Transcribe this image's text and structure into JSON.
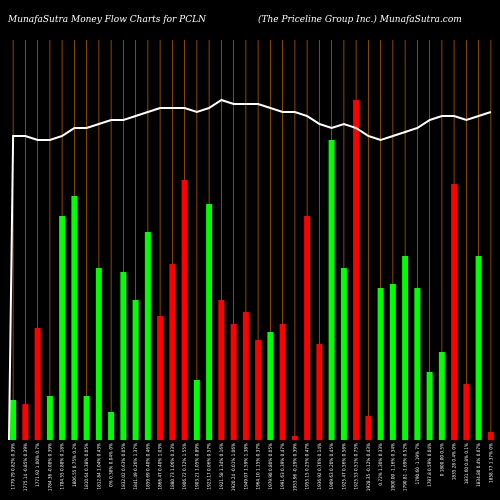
{
  "chart_data": {
    "type": "bar",
    "title": "MunafaSutra  Money Flow  Charts for PCLN",
    "subtitle": "(The    Priceline    Group Inc.) MunafaSutra.com",
    "xlabel": "",
    "ylabel": "",
    "ylim": [
      0,
      100
    ],
    "grid": true,
    "colors": {
      "up": "#00ff00",
      "down": "#ff0000",
      "line": "#ffffff",
      "grid": "#b05a00",
      "background": "#000000"
    },
    "categories": [
      "1779.79 0.82% 0.39%",
      "1775.14 -0.85% 0.39%",
      "1771.92 1.00% 0.7%",
      "1784.36 -0.08% 0.39%",
      "1784.55 0.88% 0.18%",
      "1806.55 0.75% 0.2%",
      "1810.64 0.38% 0.05%",
      "1812.84 1.04% 0.43%",
      "0% 0.38% 0.04% 0%",
      "1832.02 0.63% 0.05%",
      "1841.49 0.26% 1.37%",
      "1859.69 0.40% 0.46%",
      "1866.47 0.40% 1.03%",
      "1880.73 1.06% 0.33%",
      "1906.72 0.72% 1.55%",
      "1903.21 1.05% 0.89%",
      "1923.17 0.06% 0.57%",
      "1921.58 1.34% 0.16%",
      "1920.24 -0.01% 1.06%",
      "1949.07 1.59% 1.38%",
      "1964.10 1.15% 0.37%",
      "1979.98 0.80% 0.05%",
      "1991.63 0.39% 0.47%",
      "1953.96 -0.29% 0.39%",
      "1955.15 0.25% 0.47%",
      "1936.92 0.76% 0.14%",
      "1909.63 0.20% 0.45%",
      "1925.47 0.56% 0.58%",
      "1925.53 0.51% 0.75%",
      "1928.35 -0.12% 0.43%",
      "0.72% 1.30% 0.33%",
      "1900.00 -1.16% 0.34%",
      "1790.81 -1.69% 0.52%",
      "1790.60 -1.19% 7%",
      "1787.8 0.59% 0.04%",
      "0 1800.00 0.5%",
      "1835.28 0.4% 0%",
      "1831.60 0.8% 0.1%",
      "1834.80 0.4% 0.07%",
      "1858.77 1.37% 0%"
    ],
    "values": [
      10,
      9,
      28,
      11,
      56,
      61,
      11,
      43,
      7,
      42,
      35,
      52,
      31,
      44,
      65,
      15,
      59,
      35,
      29,
      32,
      25,
      27,
      29,
      1,
      56,
      24,
      75,
      43,
      85,
      6,
      38,
      39,
      46,
      38,
      17,
      22,
      64,
      14,
      46,
      2
    ],
    "directions": [
      "up",
      "down",
      "down",
      "up",
      "up",
      "up",
      "up",
      "up",
      "up",
      "up",
      "up",
      "up",
      "down",
      "down",
      "down",
      "up",
      "up",
      "down",
      "down",
      "down",
      "down",
      "up",
      "down",
      "down",
      "down",
      "down",
      "up",
      "up",
      "down",
      "down",
      "up",
      "up",
      "up",
      "up",
      "up",
      "up",
      "down",
      "down",
      "up",
      "down"
    ],
    "flow_line": [
      76,
      76,
      75,
      75,
      76,
      78,
      78,
      79,
      80,
      80,
      81,
      82,
      83,
      83,
      83,
      82,
      83,
      85,
      84,
      84,
      84,
      83,
      82,
      82,
      81,
      79,
      78,
      79,
      78,
      76,
      75,
      76,
      77,
      78,
      80,
      81,
      81,
      80,
      81,
      82
    ]
  }
}
